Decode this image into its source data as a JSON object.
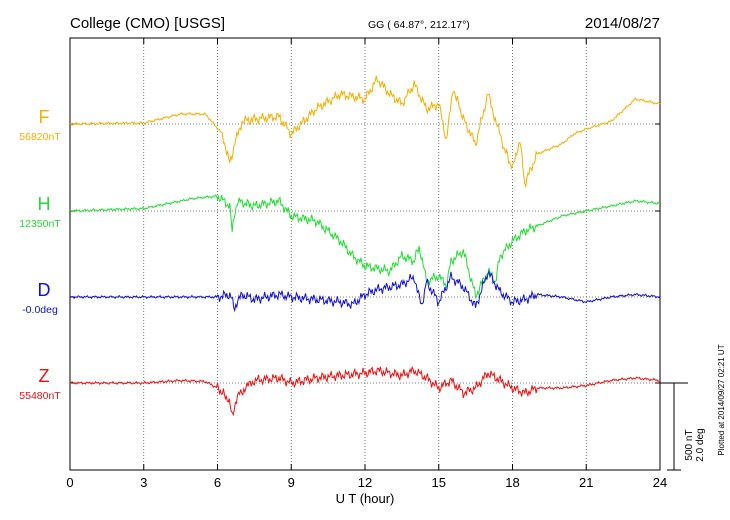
{
  "header": {
    "station": "College (CMO)  [USGS]",
    "coords": "GG ( 64.87°, 212.17°)",
    "date": "2014/08/27"
  },
  "footer": {
    "plotted_note": "Plotted at 2014/09/27 02:21  UT",
    "scale_nt": "500 nT",
    "scale_deg": "2.0 deg"
  },
  "chart_data": {
    "type": "line",
    "title": "College (CMO)  [USGS]",
    "xlabel": "U T (hour)",
    "ylabel": "",
    "xlim": [
      0,
      24
    ],
    "x_ticks": [
      0,
      3,
      6,
      9,
      12,
      15,
      18,
      21,
      24
    ],
    "grid": true,
    "series": [
      {
        "name": "F",
        "baseline_label": "56820nT",
        "color": "#f5b000",
        "points": [
          [
            0,
            0
          ],
          [
            3,
            2
          ],
          [
            4.5,
            20
          ],
          [
            5.5,
            20
          ],
          [
            6.2,
            -20
          ],
          [
            6.5,
            -80
          ],
          [
            6.7,
            -40
          ],
          [
            7,
            5
          ],
          [
            7.5,
            10
          ],
          [
            8.5,
            15
          ],
          [
            9,
            -20
          ],
          [
            10,
            30
          ],
          [
            11,
            60
          ],
          [
            12,
            50
          ],
          [
            12.5,
            90
          ],
          [
            13,
            60
          ],
          [
            13.5,
            40
          ],
          [
            14,
            80
          ],
          [
            14.5,
            30
          ],
          [
            15,
            40
          ],
          [
            15.3,
            -30
          ],
          [
            15.6,
            70
          ],
          [
            16,
            10
          ],
          [
            16.5,
            -40
          ],
          [
            17,
            60
          ],
          [
            17.3,
            10
          ],
          [
            17.6,
            -40
          ],
          [
            18,
            -90
          ],
          [
            18.3,
            -30
          ],
          [
            18.5,
            -120
          ],
          [
            19,
            -60
          ],
          [
            20,
            -40
          ],
          [
            20.5,
            -20
          ],
          [
            21,
            -10
          ],
          [
            22,
            5
          ],
          [
            23,
            50
          ],
          [
            24,
            40
          ]
        ]
      },
      {
        "name": "H",
        "baseline_label": "12350nT",
        "color": "#22dd33",
        "points": [
          [
            0,
            0
          ],
          [
            3,
            5
          ],
          [
            4,
            15
          ],
          [
            5,
            25
          ],
          [
            6,
            30
          ],
          [
            6.5,
            10
          ],
          [
            6.6,
            -40
          ],
          [
            6.8,
            20
          ],
          [
            7.5,
            10
          ],
          [
            8.5,
            20
          ],
          [
            9,
            -10
          ],
          [
            10,
            -20
          ],
          [
            11,
            -60
          ],
          [
            11.5,
            -90
          ],
          [
            12,
            -110
          ],
          [
            13,
            -120
          ],
          [
            13.5,
            -90
          ],
          [
            14,
            -100
          ],
          [
            14.2,
            -70
          ],
          [
            14.5,
            -140
          ],
          [
            15,
            -130
          ],
          [
            15.3,
            -150
          ],
          [
            15.5,
            -100
          ],
          [
            16,
            -80
          ],
          [
            16.5,
            -170
          ],
          [
            17,
            -120
          ],
          [
            17.3,
            -140
          ],
          [
            17.5,
            -90
          ],
          [
            18,
            -60
          ],
          [
            18.5,
            -40
          ],
          [
            19,
            -30
          ],
          [
            19.5,
            -20
          ],
          [
            20,
            -10
          ],
          [
            21,
            0
          ],
          [
            22,
            10
          ],
          [
            23,
            20
          ],
          [
            24,
            15
          ]
        ]
      },
      {
        "name": "D",
        "baseline_label": "-0.0deg",
        "color": "#1010dd",
        "points": [
          [
            0,
            0
          ],
          [
            3,
            0
          ],
          [
            6,
            0
          ],
          [
            6.5,
            5
          ],
          [
            6.7,
            -20
          ],
          [
            7,
            5
          ],
          [
            7.5,
            -5
          ],
          [
            8.5,
            5
          ],
          [
            9,
            0
          ],
          [
            10,
            -5
          ],
          [
            11,
            -10
          ],
          [
            11.5,
            -15
          ],
          [
            12,
            5
          ],
          [
            12.5,
            15
          ],
          [
            13,
            20
          ],
          [
            13.5,
            25
          ],
          [
            14,
            40
          ],
          [
            14.3,
            -20
          ],
          [
            14.5,
            30
          ],
          [
            15,
            -10
          ],
          [
            15.5,
            40
          ],
          [
            16,
            20
          ],
          [
            16.5,
            -20
          ],
          [
            17,
            50
          ],
          [
            17.5,
            10
          ],
          [
            18,
            -10
          ],
          [
            18.5,
            -5
          ],
          [
            19,
            5
          ],
          [
            20,
            0
          ],
          [
            21,
            -10
          ],
          [
            22,
            0
          ],
          [
            23,
            5
          ],
          [
            24,
            0
          ]
        ]
      },
      {
        "name": "Z",
        "baseline_label": "55480nT",
        "color": "#ee1111",
        "points": [
          [
            0,
            0
          ],
          [
            3,
            0
          ],
          [
            4.5,
            5
          ],
          [
            5.5,
            3
          ],
          [
            6,
            -10
          ],
          [
            6.4,
            -30
          ],
          [
            6.6,
            -60
          ],
          [
            6.9,
            -20
          ],
          [
            7.5,
            5
          ],
          [
            8.5,
            10
          ],
          [
            9,
            0
          ],
          [
            10,
            10
          ],
          [
            11,
            15
          ],
          [
            12,
            20
          ],
          [
            12.5,
            25
          ],
          [
            13,
            20
          ],
          [
            13.5,
            15
          ],
          [
            14,
            25
          ],
          [
            14.5,
            10
          ],
          [
            15,
            -10
          ],
          [
            15.5,
            5
          ],
          [
            16,
            -20
          ],
          [
            16.5,
            -10
          ],
          [
            17,
            20
          ],
          [
            17.5,
            5
          ],
          [
            18,
            -10
          ],
          [
            18.5,
            -20
          ],
          [
            19,
            -10
          ],
          [
            20,
            -10
          ],
          [
            21,
            -5
          ],
          [
            22,
            5
          ],
          [
            23,
            10
          ],
          [
            24,
            5
          ]
        ]
      }
    ]
  }
}
